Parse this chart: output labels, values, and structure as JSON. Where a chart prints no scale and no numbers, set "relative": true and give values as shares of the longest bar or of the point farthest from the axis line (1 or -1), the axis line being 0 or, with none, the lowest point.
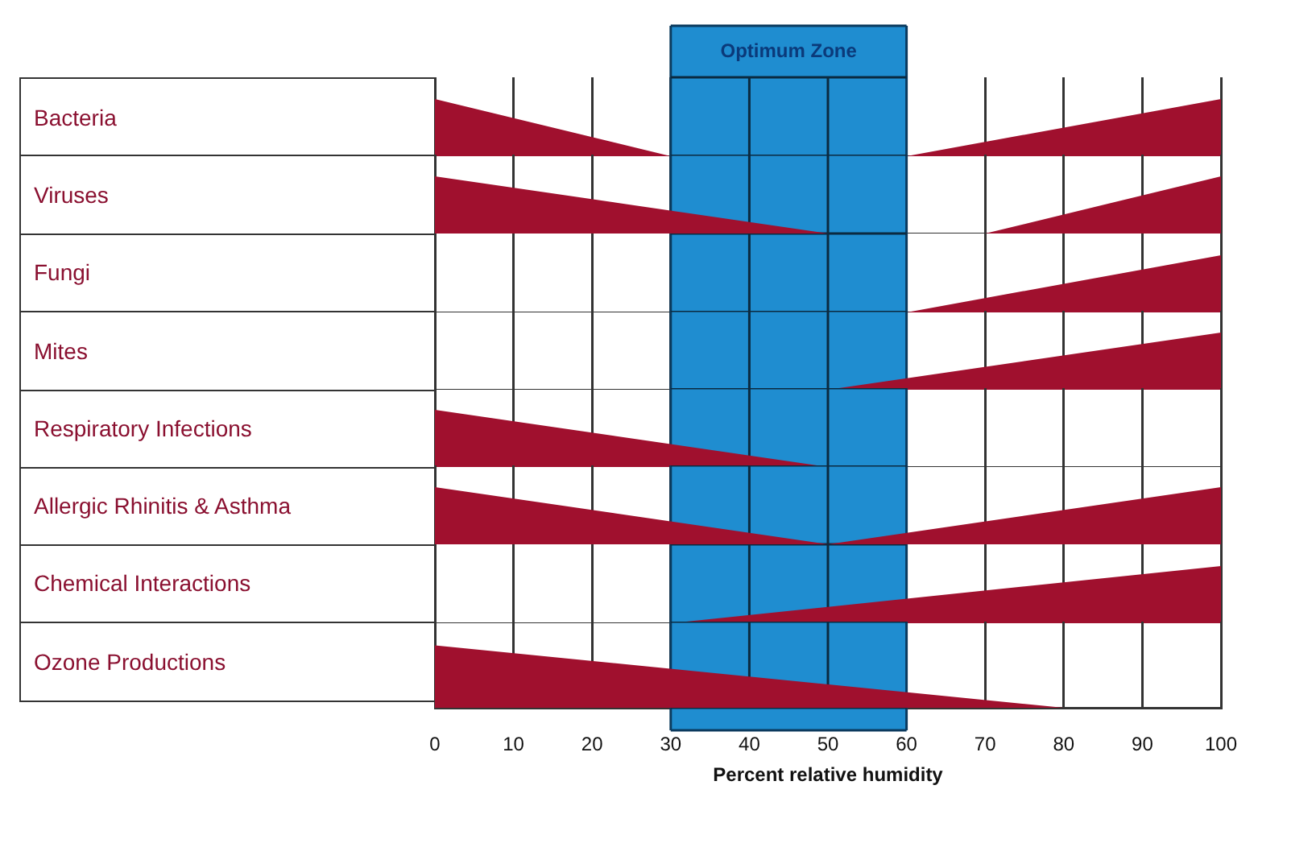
{
  "chart_data": [
    {
      "type": "area",
      "ylabel": "Bacteria",
      "relative": true,
      "x": [
        0,
        30,
        60,
        100
      ],
      "values": [
        1,
        0,
        0,
        1
      ],
      "color": "#a0102e",
      "xlim": [
        0,
        100
      ],
      "xticks": [
        0,
        10,
        20,
        30,
        40,
        50,
        60,
        70,
        80,
        90,
        100
      ],
      "grid": "x",
      "tick_labels": false,
      "bands": [
        {
          "axis": "x",
          "from": 30,
          "to": 60,
          "label": "Optimum Zone",
          "color": "#1f8dd0"
        }
      ]
    },
    {
      "type": "area",
      "ylabel": "Viruses",
      "relative": true,
      "x": [
        0,
        50,
        70,
        100
      ],
      "values": [
        1,
        0,
        0,
        1
      ],
      "color": "#a0102e",
      "xlim": [
        0,
        100
      ],
      "xticks": [
        0,
        10,
        20,
        30,
        40,
        50,
        60,
        70,
        80,
        90,
        100
      ],
      "grid": "x",
      "tick_labels": false,
      "bands": [
        {
          "axis": "x",
          "from": 30,
          "to": 60,
          "color": "#1f8dd0"
        }
      ]
    },
    {
      "type": "area",
      "ylabel": "Fungi",
      "relative": true,
      "x": [
        0,
        60,
        100
      ],
      "values": [
        0,
        0,
        1
      ],
      "color": "#a0102e",
      "xlim": [
        0,
        100
      ],
      "xticks": [
        0,
        10,
        20,
        30,
        40,
        50,
        60,
        70,
        80,
        90,
        100
      ],
      "grid": "x",
      "tick_labels": false,
      "bands": [
        {
          "axis": "x",
          "from": 30,
          "to": 60,
          "color": "#1f8dd0"
        }
      ]
    },
    {
      "type": "area",
      "ylabel": "Mites",
      "relative": true,
      "x": [
        0,
        50,
        100
      ],
      "values": [
        0,
        0,
        1
      ],
      "color": "#a0102e",
      "xlim": [
        0,
        100
      ],
      "xticks": [
        0,
        10,
        20,
        30,
        40,
        50,
        60,
        70,
        80,
        90,
        100
      ],
      "grid": "x",
      "tick_labels": false,
      "bands": [
        {
          "axis": "x",
          "from": 30,
          "to": 60,
          "color": "#1f8dd0"
        }
      ]
    },
    {
      "type": "area",
      "ylabel": "Respiratory Infections",
      "relative": true,
      "x": [
        0,
        50,
        100
      ],
      "values": [
        1,
        0,
        0
      ],
      "color": "#a0102e",
      "xlim": [
        0,
        100
      ],
      "xticks": [
        0,
        10,
        20,
        30,
        40,
        50,
        60,
        70,
        80,
        90,
        100
      ],
      "grid": "x",
      "tick_labels": false,
      "bands": [
        {
          "axis": "x",
          "from": 30,
          "to": 60,
          "color": "#1f8dd0"
        }
      ]
    },
    {
      "type": "area",
      "ylabel": "Allergic Rhinitis & Asthma",
      "relative": true,
      "x": [
        0,
        50,
        100
      ],
      "values": [
        1,
        0,
        1
      ],
      "color": "#a0102e",
      "xlim": [
        0,
        100
      ],
      "xticks": [
        0,
        10,
        20,
        30,
        40,
        50,
        60,
        70,
        80,
        90,
        100
      ],
      "grid": "x",
      "tick_labels": false,
      "bands": [
        {
          "axis": "x",
          "from": 30,
          "to": 60,
          "color": "#1f8dd0"
        }
      ]
    },
    {
      "type": "area",
      "ylabel": "Chemical Interactions",
      "relative": true,
      "x": [
        0,
        30,
        100
      ],
      "values": [
        0,
        0,
        1
      ],
      "color": "#a0102e",
      "xlim": [
        0,
        100
      ],
      "xticks": [
        0,
        10,
        20,
        30,
        40,
        50,
        60,
        70,
        80,
        90,
        100
      ],
      "grid": "x",
      "tick_labels": false,
      "bands": [
        {
          "axis": "x",
          "from": 30,
          "to": 60,
          "color": "#1f8dd0"
        }
      ]
    },
    {
      "type": "area",
      "ylabel": "Ozone Productions",
      "relative": true,
      "x": [
        0,
        80,
        100
      ],
      "values": [
        1,
        0,
        0
      ],
      "color": "#a0102e",
      "xlim": [
        0,
        100
      ],
      "xticks": [
        0,
        10,
        20,
        30,
        40,
        50,
        60,
        70,
        80,
        90,
        100
      ],
      "grid": "x",
      "tick_labels": "x",
      "xlabel": "Percent relative humidity",
      "bands": [
        {
          "axis": "x",
          "from": 30,
          "to": 60,
          "color": "#1f8dd0"
        }
      ]
    }
  ]
}
